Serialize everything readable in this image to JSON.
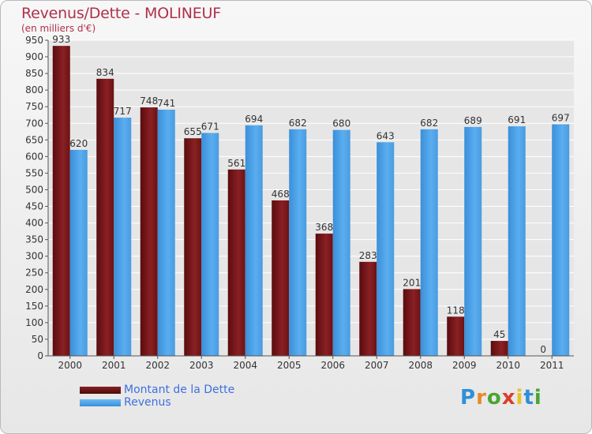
{
  "title": "Revenus/Dette - MOLINEUF",
  "subtitle": "(en milliers d'€)",
  "logo": {
    "letters": [
      "P",
      "r",
      "o",
      "x",
      "i",
      "t",
      "i"
    ],
    "colors": [
      "#2f8fd8",
      "#e8892a",
      "#4aa534",
      "#d93f2a",
      "#e8c12a",
      "#2f8fd8",
      "#4aa534"
    ]
  },
  "chart_data": {
    "type": "bar",
    "categories": [
      "2000",
      "2001",
      "2002",
      "2003",
      "2004",
      "2005",
      "2006",
      "2007",
      "2008",
      "2009",
      "2010",
      "2011"
    ],
    "series": [
      {
        "name": "Montant de la Dette",
        "color": "#7b1518",
        "values": [
          933,
          834,
          748,
          655,
          561,
          468,
          368,
          283,
          201,
          118,
          45,
          0
        ]
      },
      {
        "name": "Revenus",
        "color": "#4aa3e6",
        "values": [
          620,
          717,
          741,
          671,
          694,
          682,
          680,
          643,
          682,
          689,
          691,
          697
        ]
      }
    ],
    "ylim": [
      0,
      950
    ],
    "yticks": [
      0,
      50,
      100,
      150,
      200,
      250,
      300,
      350,
      400,
      450,
      500,
      550,
      600,
      650,
      700,
      750,
      800,
      850,
      900,
      950
    ],
    "grid": true,
    "legend": "bottom-left"
  }
}
